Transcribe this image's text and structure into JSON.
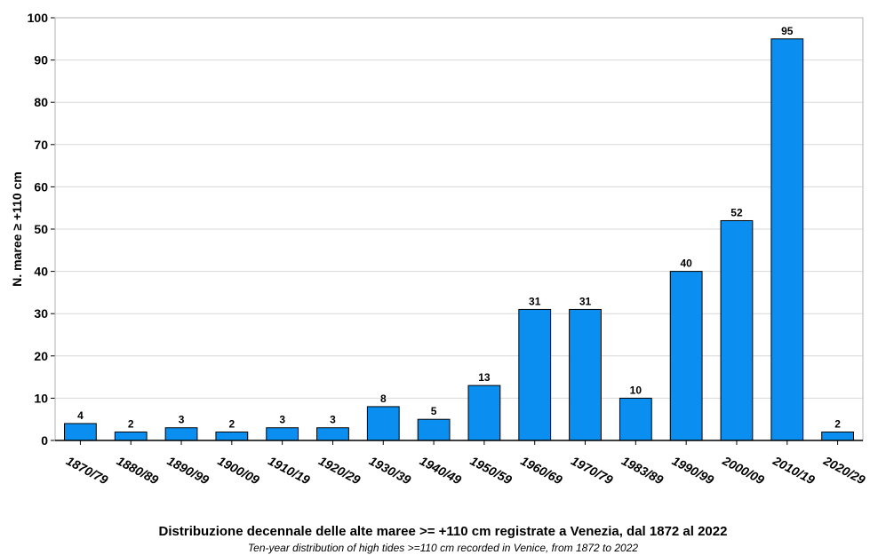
{
  "chart_data": {
    "type": "bar",
    "title": "Distribuzione decennale delle alte maree >= +110 cm registrate a Venezia, dal 1872 al 2022",
    "subtitle": "Ten-year distribution of high tides >=110 cm recorded in Venice, from 1872 to 2022",
    "xlabel": "",
    "ylabel": "N. maree ≥ +110 cm",
    "ylim": [
      0,
      100
    ],
    "yticks": [
      0,
      10,
      20,
      30,
      40,
      50,
      60,
      70,
      80,
      90,
      100
    ],
    "grid": true,
    "legend": "none",
    "categories": [
      "1870/79",
      "1880/89",
      "1890/99",
      "1900/09",
      "1910/19",
      "1920/29",
      "1930/39",
      "1940/49",
      "1950/59",
      "1960/69",
      "1970/79",
      "1983/89",
      "1990/99",
      "2000/09",
      "2010/19",
      "2020/29"
    ],
    "values": [
      4,
      2,
      3,
      2,
      3,
      3,
      8,
      5,
      13,
      31,
      31,
      10,
      40,
      52,
      95,
      2
    ],
    "bar_color": "#0a8ff0",
    "bar_stroke": "#000000",
    "grid_color": "#d8d8d8"
  }
}
